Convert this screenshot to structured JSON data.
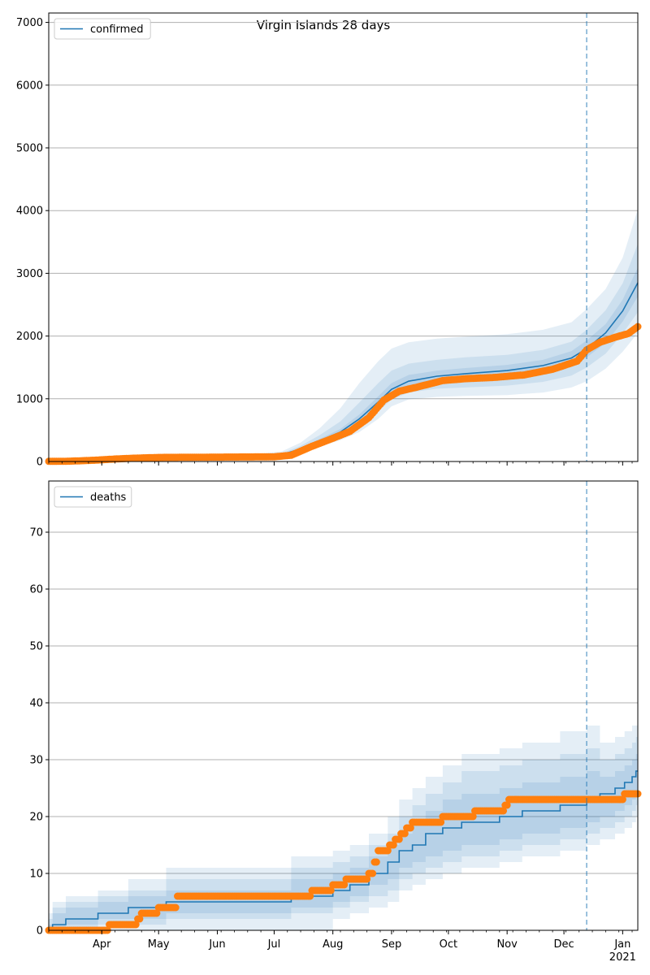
{
  "figure": {
    "title": "Virgin Islands 28 days"
  },
  "colors": {
    "model_line": "#1f77b4",
    "model_band": "#1f77b4",
    "observed": "#ff7f0e",
    "forecast_divider": "#1f77b4",
    "grid": "#b0b0b0",
    "axes": "#000000"
  },
  "x_axis": {
    "type": "date",
    "range": [
      "2020-03-04",
      "2021-01-09"
    ],
    "month_labels": [
      {
        "label": "Apr",
        "date": "2020-04-01"
      },
      {
        "label": "May",
        "date": "2020-05-01"
      },
      {
        "label": "Jun",
        "date": "2020-06-01"
      },
      {
        "label": "Jul",
        "date": "2020-07-01"
      },
      {
        "label": "Aug",
        "date": "2020-08-01"
      },
      {
        "label": "Sep",
        "date": "2020-09-01"
      },
      {
        "label": "Oct",
        "date": "2020-10-01"
      },
      {
        "label": "Nov",
        "date": "2020-11-01"
      },
      {
        "label": "Dec",
        "date": "2020-12-01"
      },
      {
        "label": "Jan",
        "date": "2021-01-01"
      }
    ],
    "year_label": "2021",
    "forecast_start": "2020-12-13"
  },
  "chart_data": [
    {
      "type": "line",
      "legend": {
        "label": "confirmed",
        "placement": "top-left"
      },
      "grid": true,
      "ylim": [
        0,
        7150
      ],
      "yticks": [
        0,
        1000,
        2000,
        3000,
        4000,
        5000,
        6000,
        7000
      ],
      "model": {
        "name": "confirmed",
        "points": [
          [
            "2020-03-04",
            5
          ],
          [
            "2020-03-20",
            20
          ],
          [
            "2020-04-05",
            45
          ],
          [
            "2020-04-20",
            62
          ],
          [
            "2020-05-10",
            75
          ],
          [
            "2020-06-01",
            80
          ],
          [
            "2020-06-20",
            85
          ],
          [
            "2020-07-05",
            110
          ],
          [
            "2020-07-15",
            200
          ],
          [
            "2020-07-25",
            330
          ],
          [
            "2020-08-05",
            470
          ],
          [
            "2020-08-15",
            680
          ],
          [
            "2020-08-25",
            950
          ],
          [
            "2020-09-01",
            1150
          ],
          [
            "2020-09-10",
            1280
          ],
          [
            "2020-09-25",
            1360
          ],
          [
            "2020-10-10",
            1400
          ],
          [
            "2020-11-01",
            1450
          ],
          [
            "2020-11-20",
            1530
          ],
          [
            "2020-12-05",
            1650
          ],
          [
            "2020-12-13",
            1800
          ],
          [
            "2020-12-23",
            2050
          ],
          [
            "2021-01-01",
            2400
          ],
          [
            "2021-01-09",
            2850
          ]
        ],
        "bands": [
          {
            "lower": [
              0,
              0,
              20,
              40,
              55,
              62,
              65,
              85,
              150,
              240,
              340,
              470,
              680,
              880,
              990,
              1030,
              1045,
              1060,
              1100,
              1180,
              1280,
              1480,
              1750,
              2050
            ],
            "upper": [
              30,
              50,
              80,
              95,
              100,
              105,
              115,
              160,
              300,
              530,
              850,
              1250,
              1600,
              1800,
              1900,
              1960,
              1990,
              2030,
              2100,
              2220,
              2430,
              2750,
              3250,
              4020
            ]
          },
          {
            "lower": [
              0,
              5,
              28,
              48,
              62,
              68,
              72,
              95,
              170,
              280,
              390,
              560,
              800,
              990,
              1100,
              1160,
              1180,
              1210,
              1270,
              1370,
              1500,
              1720,
              2040,
              2380
            ],
            "upper": [
              18,
              35,
              65,
              80,
              88,
              92,
              100,
              130,
              250,
              420,
              640,
              940,
              1250,
              1450,
              1560,
              1620,
              1660,
              1700,
              1780,
              1910,
              2100,
              2410,
              2840,
              3470
            ]
          },
          {
            "lower": [
              2,
              12,
              36,
              55,
              68,
              74,
              78,
              102,
              185,
              305,
              430,
              620,
              880,
              1070,
              1190,
              1260,
              1290,
              1330,
              1400,
              1510,
              1660,
              1890,
              2230,
              2630
            ],
            "upper": [
              10,
              28,
              55,
              70,
              82,
              86,
              92,
              120,
              220,
              360,
              520,
              750,
              1040,
              1250,
              1380,
              1450,
              1490,
              1540,
              1620,
              1760,
              1930,
              2190,
              2580,
              3090
            ]
          }
        ]
      },
      "observed": {
        "points": [
          [
            "2020-03-04",
            2
          ],
          [
            "2020-03-15",
            5
          ],
          [
            "2020-03-28",
            20
          ],
          [
            "2020-04-08",
            40
          ],
          [
            "2020-04-20",
            55
          ],
          [
            "2020-05-01",
            65
          ],
          [
            "2020-06-01",
            70
          ],
          [
            "2020-07-01",
            75
          ],
          [
            "2020-07-10",
            100
          ],
          [
            "2020-07-20",
            230
          ],
          [
            "2020-08-01",
            370
          ],
          [
            "2020-08-10",
            480
          ],
          [
            "2020-08-20",
            700
          ],
          [
            "2020-08-28",
            980
          ],
          [
            "2020-09-05",
            1120
          ],
          [
            "2020-09-15",
            1190
          ],
          [
            "2020-09-28",
            1290
          ],
          [
            "2020-10-10",
            1320
          ],
          [
            "2020-10-25",
            1340
          ],
          [
            "2020-11-10",
            1380
          ],
          [
            "2020-11-25",
            1470
          ],
          [
            "2020-12-08",
            1600
          ],
          [
            "2020-12-13",
            1780
          ],
          [
            "2020-12-20",
            1900
          ],
          [
            "2020-12-28",
            1980
          ],
          [
            "2021-01-04",
            2040
          ],
          [
            "2021-01-09",
            2150
          ]
        ]
      }
    },
    {
      "type": "line",
      "legend": {
        "label": "deaths",
        "placement": "top-left"
      },
      "grid": true,
      "ylim": [
        0,
        79
      ],
      "yticks": [
        0,
        10,
        20,
        30,
        40,
        50,
        60,
        70
      ],
      "model": {
        "name": "deaths",
        "steps": [
          [
            "2020-03-04",
            0
          ],
          [
            "2020-03-06",
            1
          ],
          [
            "2020-03-13",
            2
          ],
          [
            "2020-03-30",
            3
          ],
          [
            "2020-04-15",
            4
          ],
          [
            "2020-05-05",
            5
          ],
          [
            "2020-07-10",
            6
          ],
          [
            "2020-08-01",
            7
          ],
          [
            "2020-08-10",
            8
          ],
          [
            "2020-08-20",
            10
          ],
          [
            "2020-08-30",
            12
          ],
          [
            "2020-09-05",
            14
          ],
          [
            "2020-09-12",
            15
          ],
          [
            "2020-09-19",
            17
          ],
          [
            "2020-09-28",
            18
          ],
          [
            "2020-10-08",
            19
          ],
          [
            "2020-10-28",
            20
          ],
          [
            "2020-11-09",
            21
          ],
          [
            "2020-11-29",
            22
          ],
          [
            "2020-12-13",
            23
          ],
          [
            "2020-12-20",
            24
          ],
          [
            "2020-12-28",
            25
          ],
          [
            "2021-01-02",
            26
          ],
          [
            "2021-01-06",
            27
          ],
          [
            "2021-01-08",
            28
          ],
          [
            "2021-01-09",
            28
          ]
        ],
        "bands": [
          {
            "lower": [
              0,
              0,
              0,
              0,
              0,
              0,
              0,
              2,
              3,
              4,
              5,
              7,
              8,
              9,
              10,
              11,
              12,
              13,
              14,
              15,
              16,
              17,
              18,
              19,
              20,
              20
            ],
            "upper": [
              3,
              5,
              6,
              7,
              9,
              11,
              13,
              14,
              15,
              17,
              20,
              23,
              25,
              27,
              29,
              31,
              32,
              33,
              35,
              36,
              33,
              34,
              35,
              36,
              36,
              36
            ]
          },
          {
            "lower": [
              0,
              0,
              0,
              1,
              1,
              2,
              3,
              4,
              5,
              6,
              7,
              9,
              10,
              11,
              12,
              13,
              14,
              15,
              16,
              17,
              18,
              19,
              20,
              21,
              22,
              22
            ],
            "upper": [
              2,
              4,
              5,
              6,
              7,
              9,
              11,
              12,
              13,
              15,
              17,
              20,
              22,
              24,
              26,
              28,
              29,
              30,
              31,
              32,
              30,
              31,
              32,
              33,
              34,
              34
            ]
          },
          {
            "lower": [
              0,
              0,
              1,
              2,
              2,
              3,
              4,
              5,
              6,
              8,
              9,
              11,
              12,
              13,
              14,
              15,
              16,
              17,
              18,
              19,
              20,
              21,
              22,
              23,
              24,
              24
            ],
            "upper": [
              1,
              3,
              4,
              5,
              6,
              7,
              9,
              10,
              11,
              13,
              15,
              17,
              19,
              21,
              23,
              24,
              25,
              26,
              27,
              28,
              27,
              28,
              29,
              30,
              31,
              31
            ]
          }
        ]
      },
      "observed": {
        "steps": [
          [
            "2020-03-04",
            0
          ],
          [
            "2020-04-05",
            1
          ],
          [
            "2020-04-20",
            2
          ],
          [
            "2020-04-22",
            3
          ],
          [
            "2020-05-01",
            4
          ],
          [
            "2020-05-11",
            6
          ],
          [
            "2020-07-21",
            7
          ],
          [
            "2020-08-01",
            8
          ],
          [
            "2020-08-08",
            9
          ],
          [
            "2020-08-20",
            10
          ],
          [
            "2020-08-23",
            12
          ],
          [
            "2020-08-25",
            14
          ],
          [
            "2020-08-31",
            15
          ],
          [
            "2020-09-03",
            16
          ],
          [
            "2020-09-06",
            17
          ],
          [
            "2020-09-09",
            18
          ],
          [
            "2020-09-12",
            19
          ],
          [
            "2020-09-28",
            20
          ],
          [
            "2020-10-15",
            21
          ],
          [
            "2020-10-31",
            22
          ],
          [
            "2020-11-02",
            23
          ],
          [
            "2021-01-02",
            24
          ],
          [
            "2021-01-09",
            24
          ]
        ]
      }
    }
  ]
}
